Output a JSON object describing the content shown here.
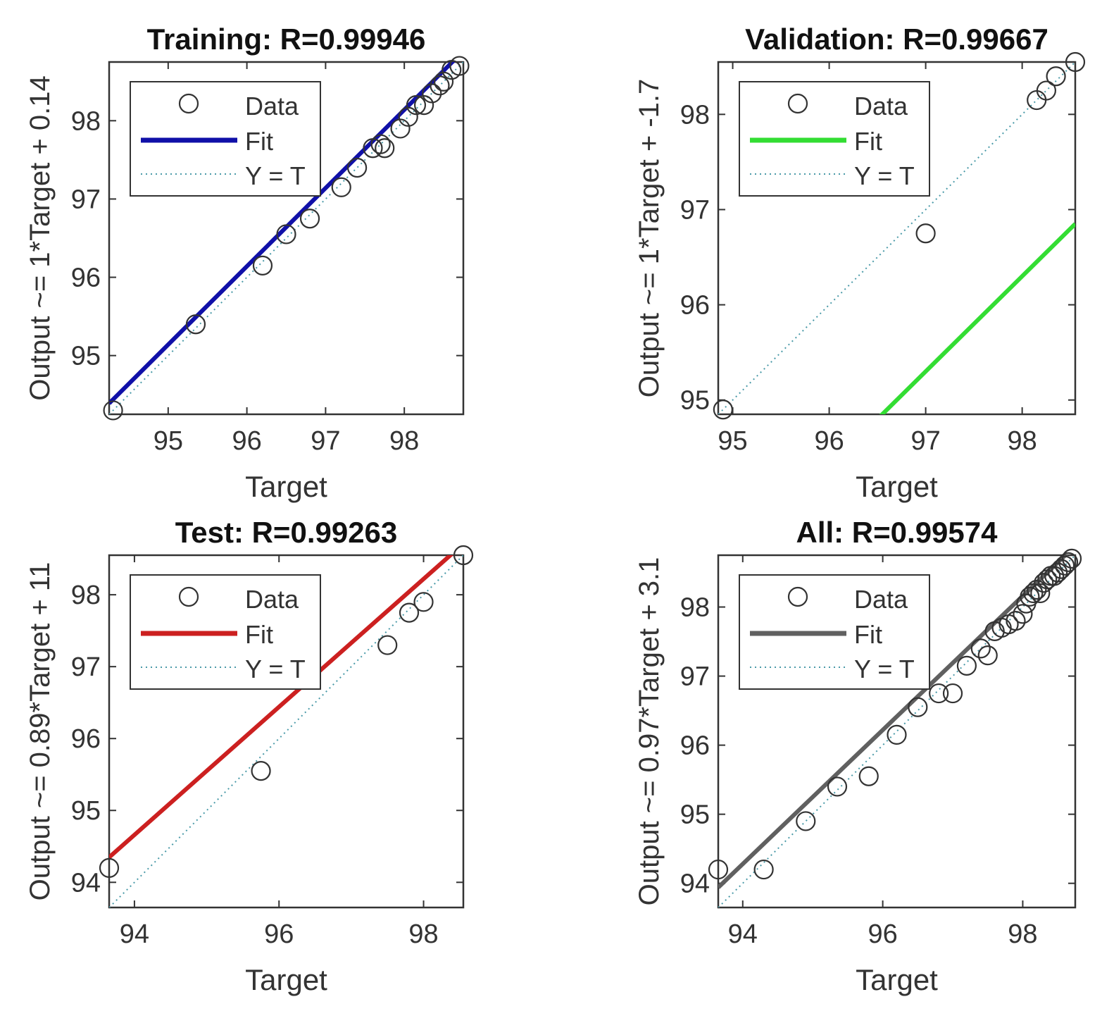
{
  "chart_data": [
    {
      "type": "scatter",
      "title": "Training: R=0.99946",
      "xlabel": "Target",
      "ylabel": "Output ~= 1*Target + 0.14",
      "xlim": [
        94.25,
        98.75
      ],
      "ylim": [
        94.25,
        98.75
      ],
      "xticks": [
        95,
        96,
        97,
        98
      ],
      "yticks": [
        95,
        96,
        97,
        98
      ],
      "fit_color": "#1010a8",
      "legend": {
        "position": "top-left",
        "entries": [
          "Data",
          "Fit",
          "Y = T"
        ]
      },
      "fit": {
        "slope": 1,
        "intercept": 0.14
      },
      "points": [
        [
          94.3,
          94.3
        ],
        [
          95.35,
          95.4
        ],
        [
          96.2,
          96.15
        ],
        [
          96.5,
          96.55
        ],
        [
          96.8,
          96.75
        ],
        [
          97.2,
          97.15
        ],
        [
          97.4,
          97.4
        ],
        [
          97.6,
          97.65
        ],
        [
          97.7,
          97.7
        ],
        [
          97.75,
          97.65
        ],
        [
          97.95,
          97.9
        ],
        [
          98.05,
          98.05
        ],
        [
          98.15,
          98.2
        ],
        [
          98.25,
          98.2
        ],
        [
          98.35,
          98.35
        ],
        [
          98.45,
          98.45
        ],
        [
          98.5,
          98.5
        ],
        [
          98.6,
          98.65
        ],
        [
          98.7,
          98.7
        ]
      ]
    },
    {
      "type": "scatter",
      "title": "Validation: R=0.99667",
      "xlabel": "Target",
      "ylabel": "Output ~= 1*Target + -1.7",
      "xlim": [
        94.85,
        98.55
      ],
      "ylim": [
        94.85,
        98.55
      ],
      "xticks": [
        95,
        96,
        97,
        98
      ],
      "yticks": [
        95,
        96,
        97,
        98
      ],
      "fit_color": "#33dd33",
      "legend": {
        "position": "top-left",
        "entries": [
          "Data",
          "Fit",
          "Y = T"
        ]
      },
      "fit": {
        "slope": 1,
        "intercept": -1.7
      },
      "points": [
        [
          94.9,
          94.9
        ],
        [
          97.0,
          96.75
        ],
        [
          98.15,
          98.15
        ],
        [
          98.25,
          98.25
        ],
        [
          98.35,
          98.4
        ],
        [
          98.55,
          98.55
        ]
      ]
    },
    {
      "type": "scatter",
      "title": "Test: R=0.99263",
      "xlabel": "Target",
      "ylabel": "Output ~= 0.89*Target + 11",
      "xlim": [
        93.65,
        98.55
      ],
      "ylim": [
        93.65,
        98.55
      ],
      "xticks": [
        94,
        96,
        98
      ],
      "yticks": [
        94,
        95,
        96,
        97,
        98
      ],
      "fit_color": "#cc2020",
      "legend": {
        "position": "top-left",
        "entries": [
          "Data",
          "Fit",
          "Y = T"
        ]
      },
      "fit": {
        "slope": 0.89,
        "intercept": 11
      },
      "points": [
        [
          93.65,
          94.2
        ],
        [
          95.75,
          95.55
        ],
        [
          97.5,
          97.3
        ],
        [
          97.8,
          97.75
        ],
        [
          98.0,
          97.9
        ],
        [
          98.55,
          98.55
        ]
      ]
    },
    {
      "type": "scatter",
      "title": "All: R=0.99574",
      "xlabel": "Target",
      "ylabel": "Output ~= 0.97*Target + 3.1",
      "xlim": [
        93.65,
        98.75
      ],
      "ylim": [
        93.65,
        98.75
      ],
      "xticks": [
        94,
        96,
        98
      ],
      "yticks": [
        94,
        95,
        96,
        97,
        98
      ],
      "fit_color": "#606060",
      "legend": {
        "position": "top-left",
        "entries": [
          "Data",
          "Fit",
          "Y = T"
        ]
      },
      "fit": {
        "slope": 0.97,
        "intercept": 3.1
      },
      "points": [
        [
          93.65,
          94.2
        ],
        [
          94.3,
          94.2
        ],
        [
          94.9,
          94.9
        ],
        [
          95.35,
          95.4
        ],
        [
          95.8,
          95.55
        ],
        [
          96.2,
          96.15
        ],
        [
          96.5,
          96.55
        ],
        [
          96.8,
          96.75
        ],
        [
          97.0,
          96.75
        ],
        [
          97.2,
          97.15
        ],
        [
          97.4,
          97.4
        ],
        [
          97.5,
          97.3
        ],
        [
          97.6,
          97.65
        ],
        [
          97.7,
          97.7
        ],
        [
          97.8,
          97.75
        ],
        [
          97.9,
          97.8
        ],
        [
          98.0,
          97.9
        ],
        [
          98.05,
          98.05
        ],
        [
          98.1,
          98.15
        ],
        [
          98.15,
          98.2
        ],
        [
          98.2,
          98.25
        ],
        [
          98.25,
          98.2
        ],
        [
          98.3,
          98.35
        ],
        [
          98.35,
          98.4
        ],
        [
          98.4,
          98.45
        ],
        [
          98.45,
          98.45
        ],
        [
          98.5,
          98.5
        ],
        [
          98.55,
          98.55
        ],
        [
          98.6,
          98.6
        ],
        [
          98.65,
          98.65
        ],
        [
          98.7,
          98.7
        ]
      ]
    }
  ]
}
